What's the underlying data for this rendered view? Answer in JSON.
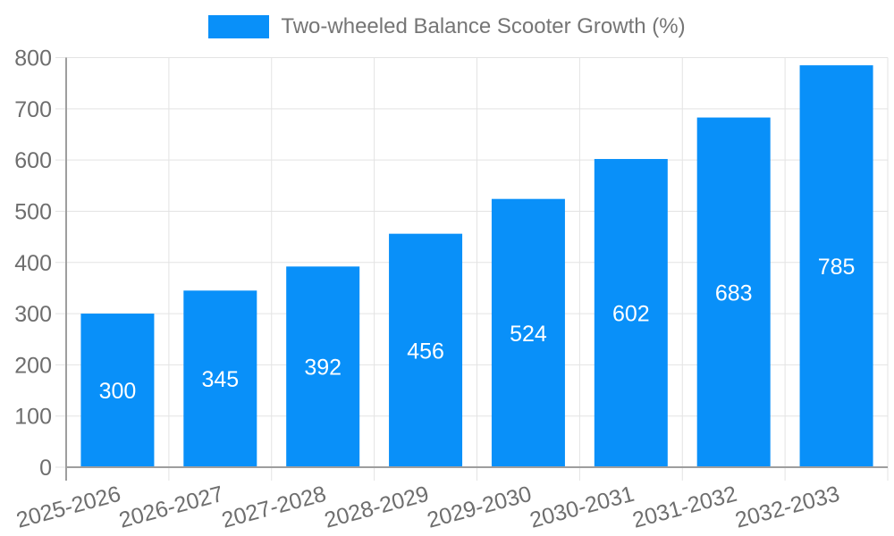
{
  "legend": {
    "label": "Two-wheeled Balance Scooter Growth (%)"
  },
  "chart_data": {
    "type": "bar",
    "title": "Two-wheeled Balance Scooter Growth (%)",
    "categories": [
      "2025-2026",
      "2026-2027",
      "2027-2028",
      "2028-2029",
      "2029-2030",
      "2030-2031",
      "2031-2032",
      "2032-2033"
    ],
    "values": [
      300,
      345,
      392,
      456,
      524,
      602,
      683,
      785
    ],
    "series": [
      {
        "name": "Two-wheeled Balance Scooter Growth (%)",
        "values": [
          300,
          345,
          392,
          456,
          524,
          602,
          683,
          785
        ]
      }
    ],
    "xlabel": "",
    "ylabel": "",
    "ylim": [
      0,
      800
    ],
    "yticks": [
      0,
      100,
      200,
      300,
      400,
      500,
      600,
      700,
      800
    ],
    "grid": true,
    "legend_position": "top",
    "bar_label_position": "center",
    "colors": {
      "bar": "#0990f9",
      "bar_label": "#ffffff",
      "gridline": "#e3e3e3",
      "axis_line": "#9e9e9e",
      "tick_text": "#6e6e6e",
      "legend_text": "#757575"
    }
  }
}
